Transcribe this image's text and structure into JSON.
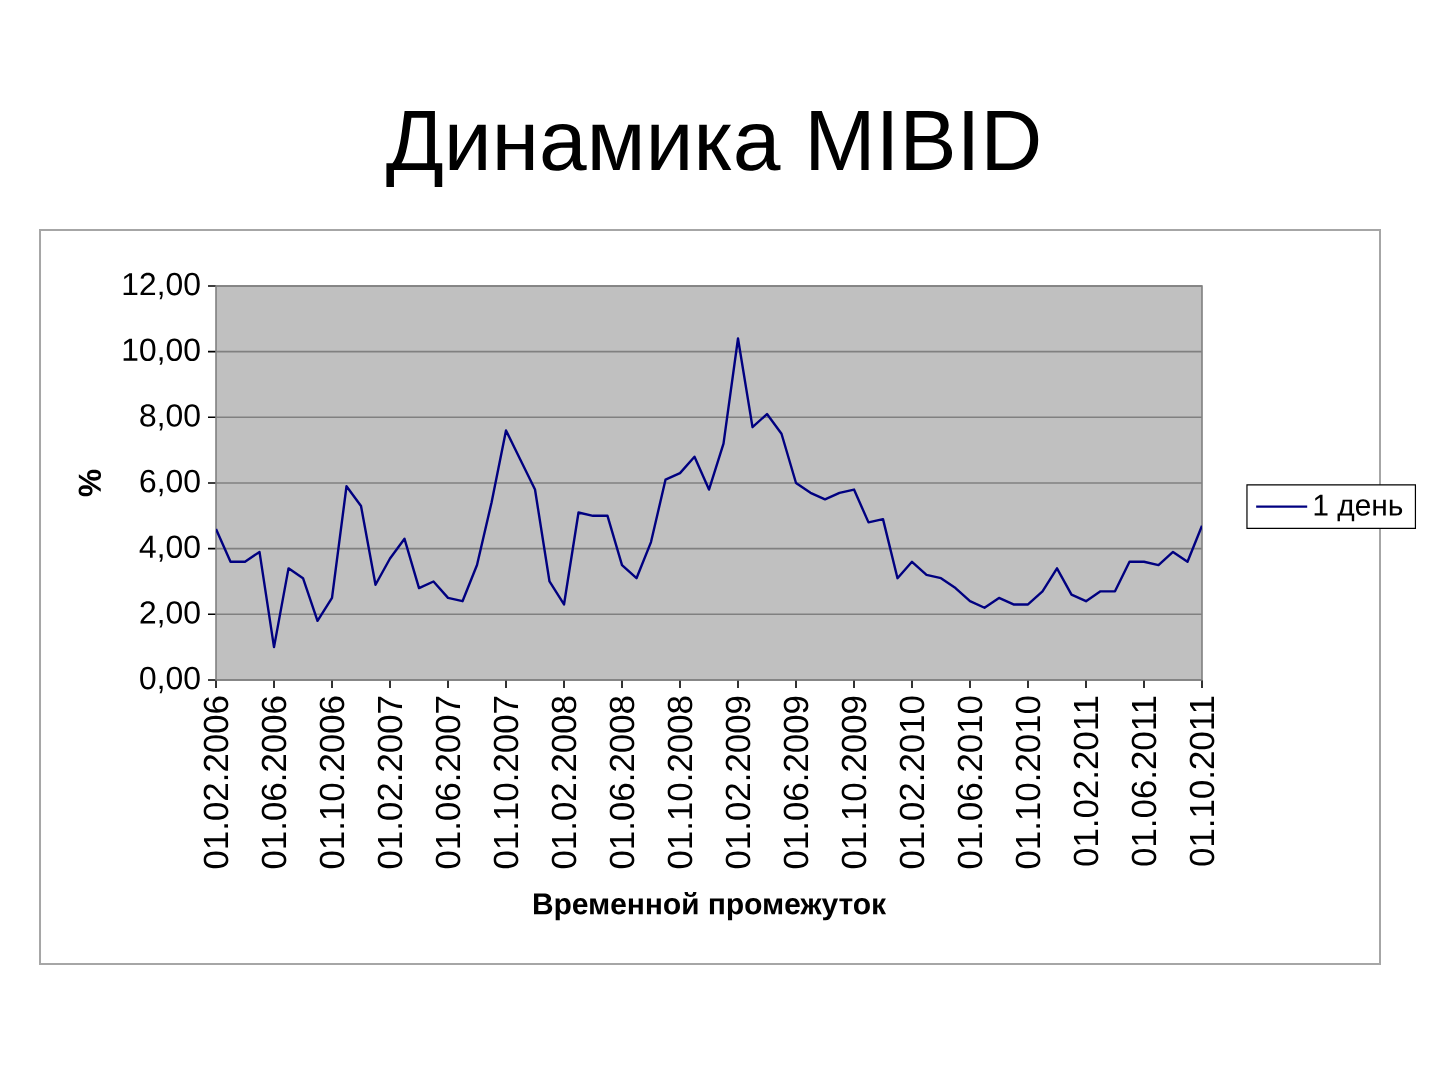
{
  "chart_data": {
    "type": "line",
    "title": "Динамика MIBID",
    "xlabel": "Временной промежуток",
    "ylabel": "%",
    "categories": [
      "01.02.2006",
      null,
      null,
      null,
      "01.06.2006",
      null,
      null,
      null,
      "01.10.2006",
      null,
      null,
      null,
      "01.02.2007",
      null,
      null,
      null,
      "01.06.2007",
      null,
      null,
      null,
      "01.10.2007",
      null,
      null,
      null,
      "01.02.2008",
      null,
      null,
      null,
      "01.06.2008",
      null,
      null,
      null,
      "01.10.2008",
      null,
      null,
      null,
      "01.02.2009",
      null,
      null,
      null,
      "01.06.2009",
      null,
      null,
      null,
      "01.10.2009",
      null,
      null,
      null,
      "01.02.2010",
      null,
      null,
      null,
      "01.06.2010",
      null,
      null,
      null,
      "01.10.2010",
      null,
      null,
      null,
      "01.02.2011",
      null,
      null,
      null,
      "01.06.2011",
      null,
      null,
      null,
      "01.10.2011"
    ],
    "series": [
      {
        "name": "1 день",
        "color": "#000080",
        "values": [
          4.6,
          3.6,
          3.6,
          3.9,
          1.0,
          3.4,
          3.1,
          1.8,
          2.5,
          5.9,
          5.3,
          2.9,
          3.7,
          4.3,
          2.8,
          3.0,
          2.5,
          2.4,
          3.5,
          5.4,
          7.6,
          6.7,
          5.8,
          3.0,
          2.3,
          5.1,
          5.0,
          5.0,
          3.5,
          3.1,
          4.2,
          6.1,
          6.3,
          6.8,
          5.8,
          7.2,
          10.4,
          7.7,
          8.1,
          7.5,
          6.0,
          5.7,
          5.5,
          5.7,
          5.8,
          4.8,
          4.9,
          3.1,
          3.6,
          3.2,
          3.1,
          2.8,
          2.4,
          2.2,
          2.5,
          2.3,
          2.3,
          2.7,
          3.4,
          2.6,
          2.4,
          2.7,
          2.7,
          3.6,
          3.6,
          3.5,
          3.9,
          3.6,
          4.7
        ]
      }
    ],
    "ylim": [
      0,
      12
    ],
    "yticks": [
      {
        "value": 0,
        "label": "0,00"
      },
      {
        "value": 2,
        "label": "2,00"
      },
      {
        "value": 4,
        "label": "4,00"
      },
      {
        "value": 6,
        "label": "6,00"
      },
      {
        "value": 8,
        "label": "8,00"
      },
      {
        "value": 10,
        "label": "10,00"
      },
      {
        "value": 12,
        "label": "12,00"
      }
    ],
    "grid": "y",
    "legend": "right"
  }
}
